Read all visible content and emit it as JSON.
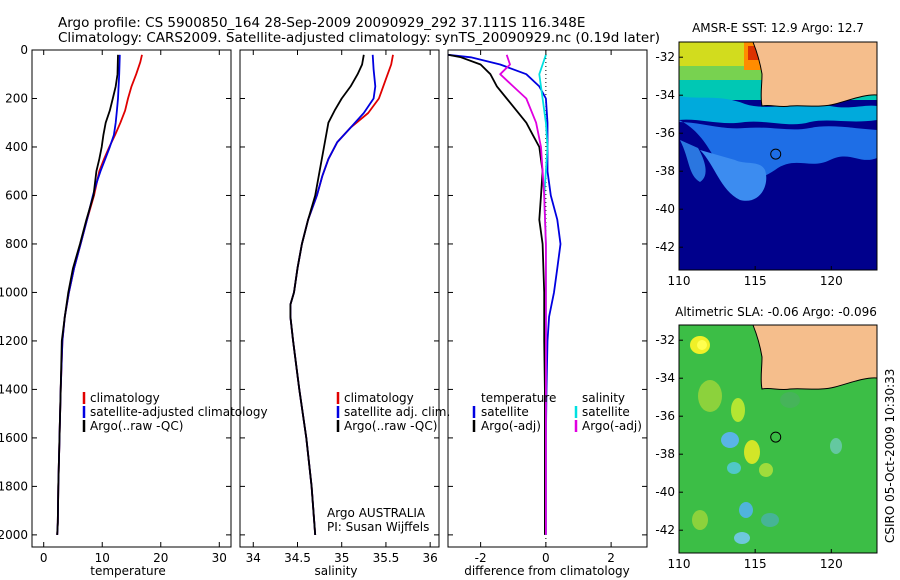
{
  "header": {
    "line1": "Argo profile: CS 5900850_164 28-Sep-2009 20090929_292 37.111S 116.348E",
    "line2": "Climatology: CARS2009. Satellite-adjusted climatology: synTS_20090929.nc (0.19d later)"
  },
  "side_label": "CSIRO 05-Oct-2009 10:30:33",
  "chart_data": [
    {
      "id": "temperature-panel",
      "type": "line",
      "xlabel": "temperature",
      "ylabel": "",
      "xlim": [
        -2,
        32
      ],
      "ylim": [
        2050,
        0
      ],
      "y_reversed": true,
      "xticks": [
        0,
        10,
        20,
        30
      ],
      "yticks": [
        0,
        200,
        400,
        600,
        800,
        1000,
        1200,
        1400,
        1600,
        1800,
        2000
      ],
      "legend": [
        "climatology",
        "satellite-adjusted climatology",
        "Argo(..raw -QC)"
      ],
      "legend_placement": "lower-right",
      "series": [
        {
          "name": "climatology",
          "color": "#e00000",
          "x": [
            16.8,
            16.5,
            15.8,
            15.0,
            14.4,
            13.9,
            13.1,
            12.2,
            11.2,
            10.3,
            9.5,
            8.6,
            7.4,
            6.3,
            5.2,
            4.3,
            3.6,
            3.2,
            2.9,
            2.7,
            2.5,
            2.4,
            2.3
          ],
          "y": [
            20,
            50,
            100,
            150,
            200,
            250,
            300,
            350,
            400,
            450,
            500,
            600,
            700,
            800,
            900,
            1000,
            1100,
            1200,
            1400,
            1600,
            1800,
            1950,
            2000
          ]
        },
        {
          "name": "satellite-adjusted climatology",
          "color": "#0000e0",
          "x": [
            13.0,
            12.9,
            12.7,
            12.5,
            12.3,
            12.0,
            11.3,
            10.5,
            9.7,
            9.0,
            8.4,
            7.4,
            6.3,
            5.2,
            4.3,
            3.6,
            3.2,
            2.9,
            2.7,
            2.5,
            2.4,
            2.3
          ],
          "y": [
            20,
            100,
            200,
            250,
            300,
            350,
            400,
            450,
            500,
            550,
            600,
            700,
            800,
            900,
            1000,
            1100,
            1200,
            1400,
            1600,
            1800,
            1950,
            2000
          ]
        },
        {
          "name": "Argo(..raw -QC)",
          "color": "#000000",
          "x": [
            12.7,
            12.6,
            12.3,
            11.8,
            11.3,
            10.6,
            10.2,
            9.9,
            9.5,
            9.0,
            8.5,
            7.3,
            6.2,
            5.0,
            4.2,
            3.6,
            3.1,
            2.9,
            2.7,
            2.5,
            2.4,
            2.3
          ],
          "y": [
            20,
            100,
            150,
            200,
            250,
            300,
            350,
            400,
            450,
            500,
            600,
            700,
            800,
            900,
            1000,
            1100,
            1200,
            1400,
            1600,
            1800,
            1950,
            2000
          ]
        }
      ]
    },
    {
      "id": "salinity-panel",
      "type": "line",
      "xlabel": "salinity",
      "ylabel": "",
      "xlim": [
        33.85,
        36.1
      ],
      "ylim": [
        2050,
        0
      ],
      "y_reversed": true,
      "xticks": [
        34,
        34.5,
        35,
        35.5,
        36
      ],
      "yticks": [],
      "legend": [
        "climatology",
        "satellite adj. clim.",
        "Argo(..raw -QC)"
      ],
      "legend_placement": "lower-right",
      "annotation": [
        "Argo AUSTRALIA",
        "PI: Susan Wijffels"
      ],
      "series": [
        {
          "name": "climatology",
          "color": "#e00000",
          "x": [
            35.58,
            35.56,
            35.5,
            35.42,
            35.3,
            35.1,
            34.95,
            34.85,
            34.78,
            34.72,
            34.62,
            34.55,
            34.5,
            34.46,
            34.42,
            34.42,
            34.45,
            34.52,
            34.6,
            34.66,
            34.69,
            34.7
          ],
          "y": [
            20,
            60,
            120,
            200,
            260,
            320,
            380,
            450,
            520,
            600,
            700,
            800,
            900,
            1000,
            1050,
            1100,
            1200,
            1400,
            1600,
            1800,
            1950,
            2000
          ]
        },
        {
          "name": "satellite adj. clim.",
          "color": "#0000e0",
          "x": [
            35.35,
            35.36,
            35.38,
            35.36,
            35.25,
            35.1,
            34.95,
            34.85,
            34.78,
            34.72,
            34.62,
            34.55,
            34.5,
            34.46,
            34.42,
            34.42,
            34.45,
            34.52,
            34.6,
            34.66,
            34.69,
            34.7
          ],
          "y": [
            20,
            80,
            150,
            200,
            260,
            320,
            380,
            450,
            520,
            600,
            700,
            800,
            900,
            1000,
            1050,
            1100,
            1200,
            1400,
            1600,
            1800,
            1950,
            2000
          ]
        },
        {
          "name": "Argo(..raw -QC)",
          "color": "#000000",
          "x": [
            35.25,
            35.23,
            35.18,
            35.1,
            35.0,
            34.92,
            34.85,
            34.8,
            34.75,
            34.7,
            34.62,
            34.55,
            34.5,
            34.46,
            34.42,
            34.42,
            34.45,
            34.52,
            34.6,
            34.66,
            34.69,
            34.7
          ],
          "y": [
            20,
            60,
            100,
            150,
            200,
            250,
            300,
            400,
            500,
            600,
            700,
            800,
            900,
            1000,
            1050,
            1100,
            1200,
            1400,
            1600,
            1800,
            1950,
            2000
          ]
        }
      ]
    },
    {
      "id": "difference-panel",
      "type": "line",
      "xlabel": "difference from climatology",
      "ylabel": "",
      "xlim": [
        -3,
        3.1
      ],
      "ylim": [
        2050,
        0
      ],
      "y_reversed": true,
      "xticks": [
        -2,
        0,
        2
      ],
      "yticks": [],
      "zero_line": "dotted",
      "legend_groups": [
        {
          "heading": "temperature",
          "entries": [
            "satellite",
            "Argo(-adj)"
          ]
        },
        {
          "heading": "salinity",
          "entries": [
            "satellite",
            "Argo(-adj)"
          ]
        }
      ],
      "legend_placement": "lower-center",
      "series": [
        {
          "name": "temperature satellite",
          "color": "#0000e0",
          "x": [
            -3.0,
            -2.3,
            -1.4,
            -0.6,
            -0.2,
            0.0,
            0.05,
            0.05,
            0.05,
            0.15,
            0.35,
            0.45,
            0.35,
            0.25,
            0.1,
            0.05,
            0.02,
            0.0,
            0.0,
            0.0
          ],
          "y": [
            20,
            30,
            60,
            100,
            150,
            200,
            300,
            400,
            500,
            600,
            700,
            800,
            900,
            1000,
            1100,
            1200,
            1400,
            1600,
            1800,
            2000
          ]
        },
        {
          "name": "temperature Argo(-adj)",
          "color": "#000000",
          "x": [
            -3.0,
            -2.6,
            -2.0,
            -1.7,
            -1.5,
            -1.2,
            -0.9,
            -0.6,
            -0.4,
            -0.2,
            -0.1,
            -0.15,
            -0.2,
            -0.1,
            -0.05,
            -0.05,
            -0.03,
            -0.03,
            -0.03,
            -0.03
          ],
          "y": [
            20,
            30,
            60,
            100,
            150,
            200,
            250,
            300,
            350,
            400,
            500,
            600,
            700,
            800,
            1000,
            1200,
            1400,
            1600,
            1800,
            2000
          ]
        },
        {
          "name": "salinity satellite",
          "color": "#00e0e0",
          "x": [
            0.0,
            -0.1,
            -0.2,
            -0.1,
            0.0,
            0.05,
            0.0,
            -0.05,
            0.0,
            0.0,
            0.0,
            0.0,
            0.0,
            0.0
          ],
          "y": [
            20,
            60,
            100,
            200,
            300,
            400,
            500,
            600,
            800,
            1000,
            1200,
            1500,
            1800,
            2000
          ]
        },
        {
          "name": "salinity Argo(-adj)",
          "color": "#e000e0",
          "x": [
            -1.2,
            -1.1,
            -1.4,
            -1.0,
            -0.6,
            -0.3,
            -0.15,
            -0.1,
            -0.05,
            0.0,
            0.0,
            0.0,
            0.0,
            0.0
          ],
          "y": [
            20,
            60,
            100,
            150,
            200,
            300,
            400,
            500,
            600,
            800,
            1000,
            1400,
            1800,
            2000
          ]
        }
      ]
    },
    {
      "id": "sst-map",
      "type": "heatmap",
      "title": "AMSR-E SST: 12.9 Argo: 12.7",
      "xlim": [
        110,
        123
      ],
      "ylim": [
        -43.2,
        -31.2
      ],
      "xticks": [
        110,
        115,
        120
      ],
      "yticks": [
        -32,
        -34,
        -36,
        -38,
        -40,
        -42
      ],
      "argo_position": {
        "lon": 116.35,
        "lat": -37.1
      }
    },
    {
      "id": "sla-map",
      "type": "heatmap",
      "title": "Altimetric SLA: -0.06 Argo: -0.096",
      "xlim": [
        110,
        123
      ],
      "ylim": [
        -43.2,
        -31.2
      ],
      "xticks": [
        110,
        115,
        120
      ],
      "yticks": [
        -32,
        -34,
        -36,
        -38,
        -40,
        -42
      ],
      "argo_position": {
        "lon": 116.35,
        "lat": -37.1
      }
    }
  ]
}
